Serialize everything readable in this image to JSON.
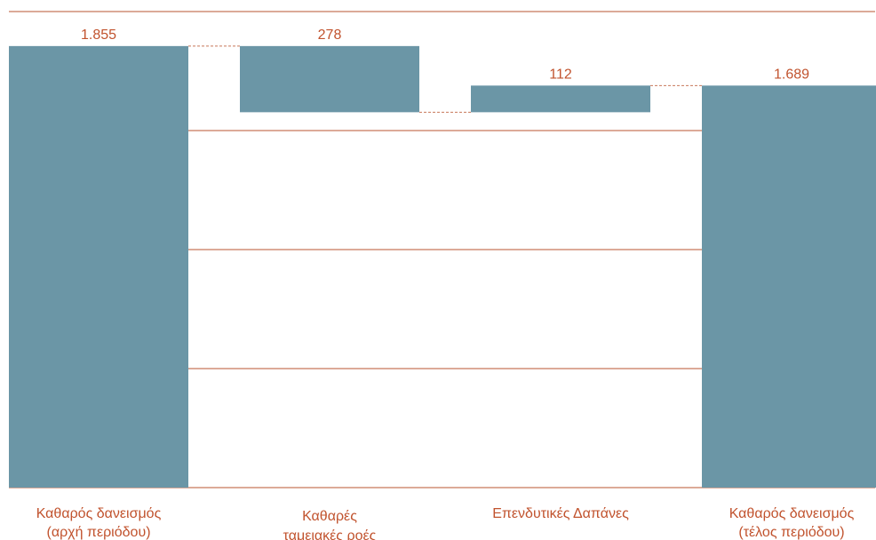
{
  "chart_data": {
    "type": "bar",
    "subtype": "waterfall",
    "categories": [
      [
        "Καθαρός δανεισμός",
        "(αρχή περιόδου)"
      ],
      [
        "Καθαρές",
        "ταμειακές ροές"
      ],
      [
        "Επενδυτικές Δαπάνες"
      ],
      [
        "Καθαρός δανεισμός",
        "(τέλος περιόδου)"
      ]
    ],
    "values": [
      1855,
      -278,
      112,
      1689
    ],
    "value_labels": [
      "1.855",
      "278",
      "112",
      "1.689"
    ],
    "steps": [
      {
        "base": 0,
        "top": 1855,
        "kind": "total"
      },
      {
        "base": 1577,
        "top": 1855,
        "kind": "decrease"
      },
      {
        "base": 1577,
        "top": 1689,
        "kind": "increase"
      },
      {
        "base": 0,
        "top": 1689,
        "kind": "total"
      }
    ],
    "ylim": [
      0,
      2000
    ],
    "gridlines": [
      0,
      500,
      1000,
      1500,
      2000
    ],
    "grid": true,
    "legend": "none",
    "colors": {
      "bar": "#6b96a6",
      "text": "#c1532e",
      "grid": "#c8775a"
    }
  }
}
